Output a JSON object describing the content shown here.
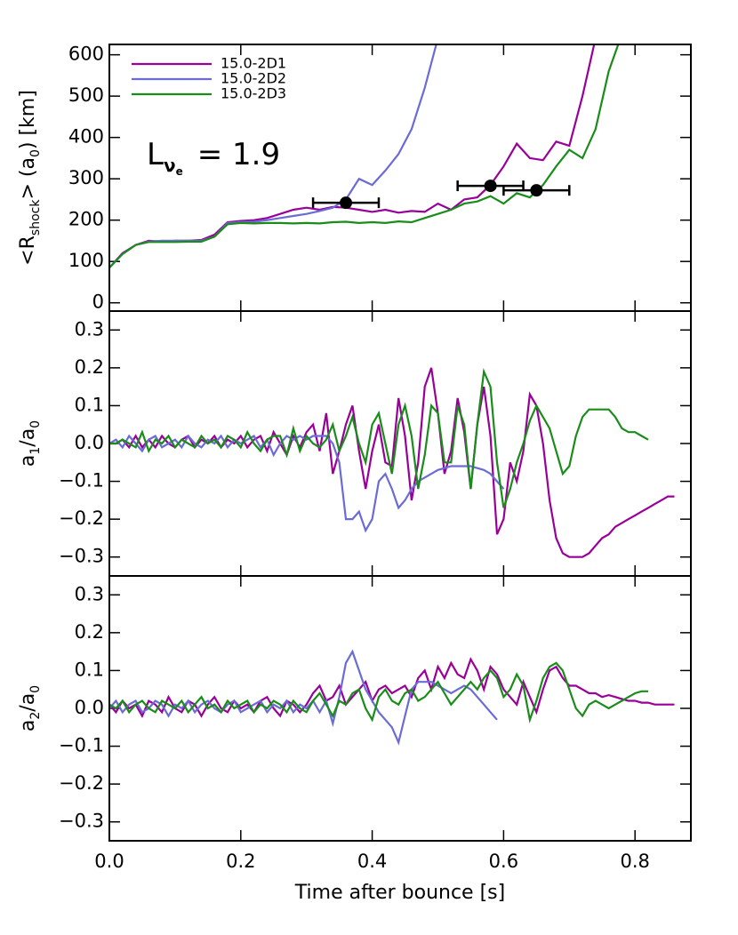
{
  "chart_data": [
    {
      "type": "line",
      "ylabel": [
        "<R",
        "shock",
        "> (a",
        "0",
        ") [km]"
      ],
      "annotation": {
        "text": "L",
        "sub": "ν",
        "subsub": "e",
        "rest": "= 1.9"
      },
      "legend": "upper left",
      "x": [
        0,
        0.02,
        0.04,
        0.06,
        0.08,
        0.1,
        0.12,
        0.14,
        0.16,
        0.18,
        0.2,
        0.22,
        0.24,
        0.26,
        0.28,
        0.3,
        0.32,
        0.34,
        0.36,
        0.38,
        0.4,
        0.42,
        0.44,
        0.46,
        0.48,
        0.5,
        0.52,
        0.54,
        0.56,
        0.58,
        0.6,
        0.62,
        0.64,
        0.66,
        0.68,
        0.7,
        0.72,
        0.74,
        0.76,
        0.78,
        0.8,
        0.82,
        0.84,
        0.86
      ],
      "series": [
        {
          "name": "15.0-2D1",
          "color": "#990099",
          "values": [
            85,
            120,
            140,
            150,
            148,
            150,
            150,
            152,
            165,
            195,
            198,
            200,
            205,
            215,
            225,
            230,
            225,
            232,
            230,
            225,
            220,
            225,
            218,
            222,
            220,
            240,
            225,
            250,
            255,
            285,
            330,
            385,
            350,
            345,
            390,
            380,
            500,
            640,
            null,
            null,
            null,
            null,
            null,
            null
          ]
        },
        {
          "name": "15.0-2D2",
          "color": "#6b6bd6",
          "values": [
            85,
            118,
            140,
            148,
            150,
            150,
            150,
            150,
            160,
            193,
            195,
            196,
            200,
            205,
            210,
            215,
            222,
            230,
            250,
            300,
            285,
            320,
            360,
            420,
            520,
            640,
            null,
            null,
            null,
            null,
            null,
            null,
            null,
            null,
            null,
            null,
            null,
            null,
            null,
            null,
            null,
            null,
            null,
            null
          ]
        },
        {
          "name": "15.0-2D3",
          "color": "#1a8c1a",
          "values": [
            85,
            118,
            140,
            147,
            147,
            147,
            148,
            148,
            160,
            190,
            193,
            192,
            193,
            193,
            192,
            193,
            192,
            195,
            196,
            193,
            195,
            193,
            197,
            195,
            205,
            215,
            225,
            240,
            245,
            258,
            240,
            265,
            255,
            285,
            330,
            370,
            350,
            420,
            560,
            650,
            null,
            null,
            null,
            null
          ]
        }
      ],
      "markers": [
        {
          "x": 0.36,
          "y": 242,
          "xerr": 0.05
        },
        {
          "x": 0.58,
          "y": 283,
          "xerr": 0.05
        },
        {
          "x": 0.65,
          "y": 272,
          "xerr": 0.05
        }
      ],
      "xlim": [
        0,
        0.885
      ],
      "ylim": [
        -20,
        625
      ],
      "xticks": [
        0,
        0.2,
        0.4,
        0.6,
        0.8
      ],
      "yticks": [
        0,
        100,
        200,
        300,
        400,
        500,
        600
      ]
    },
    {
      "type": "line",
      "ylabel": [
        "a",
        "1",
        "/a",
        "0"
      ],
      "x": [
        0,
        0.01,
        0.02,
        0.03,
        0.04,
        0.05,
        0.06,
        0.07,
        0.08,
        0.09,
        0.1,
        0.11,
        0.12,
        0.13,
        0.14,
        0.15,
        0.16,
        0.17,
        0.18,
        0.19,
        0.2,
        0.21,
        0.22,
        0.23,
        0.24,
        0.25,
        0.26,
        0.27,
        0.28,
        0.29,
        0.3,
        0.31,
        0.32,
        0.33,
        0.34,
        0.35,
        0.36,
        0.37,
        0.38,
        0.39,
        0.4,
        0.41,
        0.42,
        0.43,
        0.44,
        0.45,
        0.46,
        0.47,
        0.48,
        0.49,
        0.5,
        0.51,
        0.52,
        0.53,
        0.54,
        0.55,
        0.56,
        0.57,
        0.58,
        0.59,
        0.6,
        0.61,
        0.62,
        0.63,
        0.64,
        0.65,
        0.66,
        0.67,
        0.68,
        0.69,
        0.7,
        0.71,
        0.72,
        0.73,
        0.74,
        0.75,
        0.76,
        0.77,
        0.78,
        0.79,
        0.8,
        0.81,
        0.82,
        0.83,
        0.84,
        0.85,
        0.86
      ],
      "series": [
        {
          "color": "#990099",
          "values": [
            0,
            0,
            0.01,
            -0.01,
            0.02,
            -0.01,
            0.01,
            -0.01,
            0.02,
            0,
            -0.01,
            0.01,
            0.02,
            -0.01,
            0.01,
            0,
            0.02,
            -0.01,
            0.01,
            0,
            0.02,
            -0.01,
            0.01,
            0.02,
            -0.02,
            0.03,
            0,
            -0.03,
            0.02,
            -0.01,
            0.03,
            0.05,
            -0.02,
            0.08,
            -0.08,
            -0.02,
            0.05,
            0.1,
            -0.02,
            -0.12,
            -0.02,
            0.05,
            -0.05,
            -0.06,
            0.12,
            0.02,
            -0.15,
            -0.05,
            0.15,
            0.2,
            0.08,
            -0.08,
            -0.02,
            0.12,
            0.03,
            -0.12,
            0.05,
            0.15,
            0.02,
            -0.24,
            -0.2,
            -0.05,
            -0.1,
            -0.02,
            0.13,
            0.1,
            0,
            -0.15,
            -0.25,
            -0.29,
            -0.3,
            -0.3,
            -0.3,
            -0.29,
            -0.27,
            -0.25,
            -0.24,
            -0.22,
            -0.21,
            -0.2,
            -0.19,
            -0.18,
            -0.17,
            -0.16,
            -0.15,
            -0.14,
            -0.14
          ]
        },
        {
          "color": "#6b6bd6",
          "values": [
            0,
            0.01,
            -0.01,
            0.02,
            0,
            -0.02,
            0.01,
            0.02,
            -0.01,
            0,
            0.01,
            -0.01,
            0.02,
            0,
            -0.01,
            0.01,
            0,
            0.02,
            -0.01,
            0.01,
            0,
            0.01,
            0.02,
            -0.01,
            0.01,
            -0.03,
            0,
            0.02,
            0.01,
            0.02,
            0.01,
            0.02,
            0.02,
            0.02,
            0,
            -0.05,
            -0.2,
            -0.2,
            -0.18,
            -0.23,
            -0.2,
            -0.1,
            -0.08,
            -0.12,
            -0.17,
            -0.15,
            -0.12,
            -0.1,
            -0.09,
            -0.08,
            -0.07,
            -0.065,
            -0.06,
            -0.06,
            -0.06,
            -0.06,
            -0.065,
            -0.07,
            -0.08,
            -0.1,
            -0.12,
            null,
            null,
            null,
            null,
            null,
            null,
            null,
            null,
            null,
            null,
            null,
            null,
            null,
            null,
            null,
            null,
            null,
            null,
            null,
            null,
            null,
            null,
            null,
            null,
            null,
            null
          ]
        },
        {
          "color": "#1a8c1a",
          "values": [
            0,
            0,
            0.01,
            0,
            -0.01,
            0.03,
            -0.02,
            0.01,
            0,
            0.02,
            -0.01,
            0.01,
            0,
            -0.01,
            0.02,
            0,
            0.01,
            -0.01,
            0.02,
            0.01,
            -0.01,
            0.03,
            0,
            -0.02,
            0.01,
            0.02,
            0.02,
            -0.03,
            0.04,
            -0.02,
            0.02,
            0,
            -0.01,
            0.01,
            0.05,
            -0.02,
            0.02,
            0.07,
            0,
            -0.05,
            0.05,
            0.08,
            0,
            -0.08,
            0.05,
            0.1,
            0.02,
            -0.12,
            -0.03,
            0.1,
            0.08,
            -0.05,
            -0.05,
            0.1,
            0.05,
            -0.12,
            0.05,
            0.19,
            0.15,
            -0.05,
            -0.17,
            -0.12,
            -0.05,
            0,
            0.06,
            0.1,
            0.07,
            0.04,
            -0.02,
            -0.08,
            -0.06,
            0.02,
            0.07,
            0.09,
            0.09,
            0.09,
            0.09,
            0.07,
            0.04,
            0.03,
            0.03,
            0.02,
            0.01,
            null,
            null,
            null,
            null
          ]
        }
      ],
      "xlim": [
        0,
        0.885
      ],
      "ylim": [
        -0.35,
        0.35
      ],
      "xticks": [
        0,
        0.2,
        0.4,
        0.6,
        0.8
      ],
      "yticks": [
        {
          "value": -0.3,
          "label": "−0.3"
        },
        {
          "value": -0.2,
          "label": "−0.2"
        },
        {
          "value": -0.1,
          "label": "−0.1"
        },
        {
          "value": 0,
          "label": "0.0"
        },
        0.1,
        0.2,
        0.3
      ]
    },
    {
      "type": "line",
      "ylabel": [
        "a",
        "2",
        "/a",
        "0"
      ],
      "xlabel": "Time after bounce [s]",
      "x": [
        0,
        0.01,
        0.02,
        0.03,
        0.04,
        0.05,
        0.06,
        0.07,
        0.08,
        0.09,
        0.1,
        0.11,
        0.12,
        0.13,
        0.14,
        0.15,
        0.16,
        0.17,
        0.18,
        0.19,
        0.2,
        0.21,
        0.22,
        0.23,
        0.24,
        0.25,
        0.26,
        0.27,
        0.28,
        0.29,
        0.3,
        0.31,
        0.32,
        0.33,
        0.34,
        0.35,
        0.36,
        0.37,
        0.38,
        0.39,
        0.4,
        0.41,
        0.42,
        0.43,
        0.44,
        0.45,
        0.46,
        0.47,
        0.48,
        0.49,
        0.5,
        0.51,
        0.52,
        0.53,
        0.54,
        0.55,
        0.56,
        0.57,
        0.58,
        0.59,
        0.6,
        0.61,
        0.62,
        0.63,
        0.64,
        0.65,
        0.66,
        0.67,
        0.68,
        0.69,
        0.7,
        0.71,
        0.72,
        0.73,
        0.74,
        0.75,
        0.76,
        0.77,
        0.78,
        0.79,
        0.8,
        0.81,
        0.82,
        0.83,
        0.84,
        0.85,
        0.86
      ],
      "series": [
        {
          "color": "#990099",
          "values": [
            0.01,
            -0.01,
            0.02,
            0,
            0.01,
            -0.02,
            0.02,
            0.01,
            -0.01,
            0.03,
            0,
            -0.01,
            0.02,
            0.01,
            -0.02,
            0.01,
            0.03,
            0,
            -0.01,
            0.02,
            0,
            0.01,
            -0.01,
            0.02,
            0.03,
            0,
            -0.02,
            0.02,
            0.01,
            -0.01,
            0.01,
            0.04,
            0.06,
            0.02,
            0.03,
            0.06,
            0.01,
            0.03,
            0.05,
            0.07,
            0.02,
            0.05,
            0.06,
            0.04,
            0.05,
            0.06,
            0.03,
            0.08,
            0.1,
            0.05,
            0.11,
            0.08,
            0.12,
            0.09,
            0.08,
            0.13,
            0.1,
            0.05,
            0.11,
            0.09,
            0.05,
            0.03,
            0.01,
            0.07,
            0.03,
            -0.01,
            0.05,
            0.1,
            0.11,
            0.08,
            0.06,
            0.06,
            0.05,
            0.04,
            0.04,
            0.03,
            0.035,
            0.03,
            0.025,
            0.02,
            0.02,
            0.015,
            0.015,
            0.01,
            0.01,
            0.01,
            0.01
          ]
        },
        {
          "color": "#6b6bd6",
          "values": [
            0,
            0.02,
            -0.01,
            0.01,
            0.02,
            -0.01,
            0,
            0.02,
            0.01,
            -0.02,
            0.01,
            0,
            0.02,
            -0.01,
            0.01,
            0.02,
            0,
            -0.01,
            0.01,
            0.02,
            -0.01,
            0,
            0.01,
            0.02,
            -0.01,
            0.01,
            0,
            0.02,
            -0.01,
            0.01,
            0,
            0.02,
            -0.01,
            0.02,
            -0.04,
            0.03,
            0.12,
            0.15,
            0.1,
            0.05,
            0.02,
            -0.01,
            -0.03,
            -0.05,
            -0.09,
            -0.02,
            0.05,
            0.07,
            0.07,
            0.07,
            0.06,
            0.05,
            0.04,
            0.05,
            0.06,
            0.05,
            0.03,
            0.01,
            -0.01,
            -0.03,
            null,
            null,
            null,
            null,
            null,
            null,
            null,
            null,
            null,
            null,
            null,
            null,
            null,
            null,
            null,
            null,
            null,
            null,
            null,
            null,
            null,
            null,
            null,
            null,
            null,
            null,
            null
          ]
        },
        {
          "color": "#1a8c1a",
          "values": [
            0.01,
            0,
            0.02,
            -0.01,
            0.01,
            0.02,
            0,
            -0.01,
            0.02,
            0.01,
            0,
            0.02,
            -0.01,
            0.01,
            0.03,
            0,
            0.01,
            -0.01,
            0.02,
            0,
            0.01,
            0.02,
            -0.01,
            0.01,
            0,
            0.02,
            0.01,
            -0.01,
            0.02,
            0,
            -0.01,
            0.02,
            0.04,
            0.01,
            -0.02,
            0.02,
            0.01,
            0.04,
            0.05,
            0,
            -0.03,
            0.03,
            0.05,
            0.02,
            0.01,
            0.04,
            0.05,
            0.02,
            0.03,
            0.05,
            0.07,
            0.04,
            0.01,
            0.03,
            0.05,
            0.07,
            0.05,
            0.08,
            0.1,
            0.08,
            0.03,
            0.05,
            0.09,
            0.06,
            -0.03,
            0.02,
            0.08,
            0.11,
            0.12,
            0.1,
            0.05,
            0,
            -0.02,
            0.01,
            0.02,
            0.01,
            0,
            0.01,
            0.02,
            0.03,
            0.04,
            0.045,
            0.045,
            null,
            null,
            null,
            null
          ]
        }
      ],
      "xlim": [
        0,
        0.885
      ],
      "ylim": [
        -0.35,
        0.35
      ],
      "xticks": [
        {
          "value": 0,
          "label": "0.0"
        },
        0.2,
        0.4,
        0.6,
        0.8
      ],
      "yticks": [
        {
          "value": -0.3,
          "label": "−0.3"
        },
        {
          "value": -0.2,
          "label": "−0.2"
        },
        {
          "value": -0.1,
          "label": "−0.1"
        },
        {
          "value": 0,
          "label": "0.0"
        },
        0.1,
        0.2,
        0.3
      ]
    }
  ]
}
